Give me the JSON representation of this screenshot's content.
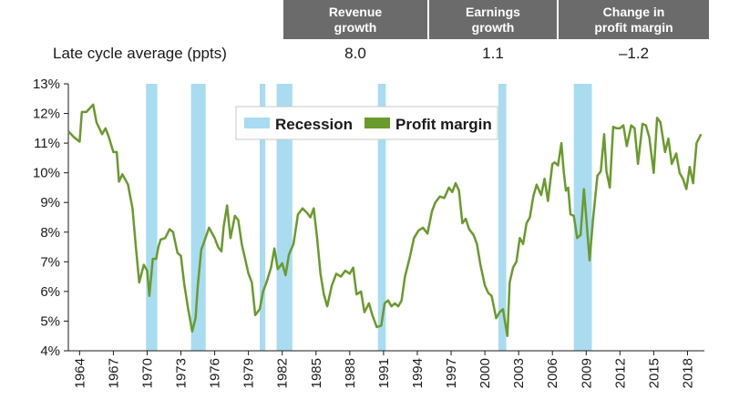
{
  "table": {
    "headers": [
      {
        "line1": "Revenue",
        "line2": "growth"
      },
      {
        "line1": "Earnings",
        "line2": "growth"
      },
      {
        "line1": "Change in",
        "line2": "profit margin"
      }
    ],
    "row_label": "Late cycle average (ppts)",
    "values": [
      "8.0",
      "1.1",
      "–1.2"
    ]
  },
  "colors": {
    "header_bg": "#6b6b6b",
    "recession": "#a9dcf0",
    "line": "#6a9a2c",
    "axis": "#1a1a1a"
  },
  "chart_data": {
    "type": "line",
    "x_range": [
      1963,
      2019.5
    ],
    "ylim": [
      4,
      13
    ],
    "y_ticks": [
      4,
      5,
      6,
      7,
      8,
      9,
      10,
      11,
      12,
      13
    ],
    "y_tick_labels": [
      "4%",
      "5%",
      "6%",
      "7%",
      "8%",
      "9%",
      "10%",
      "11%",
      "12%",
      "13%"
    ],
    "x_ticks": [
      1964,
      1967,
      1970,
      1973,
      1976,
      1979,
      1982,
      1985,
      1988,
      1991,
      1994,
      1997,
      2000,
      2003,
      2006,
      2009,
      2012,
      2015,
      2018
    ],
    "legend": {
      "recession": "Recession",
      "line": "Profit margin"
    },
    "recessions": [
      [
        1969.9,
        1970.9
      ],
      [
        1973.9,
        1975.2
      ],
      [
        1980.0,
        1980.5
      ],
      [
        1981.5,
        1982.9
      ],
      [
        1990.5,
        1991.2
      ],
      [
        2001.2,
        2001.9
      ],
      [
        2007.9,
        2009.5
      ]
    ],
    "series": [
      {
        "name": "Profit margin",
        "x": [
          1963.0,
          1963.5,
          1964.0,
          1964.2,
          1964.6,
          1965.2,
          1965.5,
          1966.0,
          1966.3,
          1966.6,
          1967.0,
          1967.3,
          1967.5,
          1967.8,
          1968.3,
          1968.7,
          1969.0,
          1969.3,
          1969.7,
          1970.0,
          1970.2,
          1970.5,
          1970.8,
          1971.0,
          1971.2,
          1971.6,
          1972.0,
          1972.3,
          1972.7,
          1973.0,
          1973.3,
          1973.6,
          1974.0,
          1974.3,
          1974.5,
          1974.8,
          1975.0,
          1975.5,
          1976.0,
          1976.3,
          1976.6,
          1976.8,
          1977.1,
          1977.4,
          1977.8,
          1978.1,
          1978.4,
          1978.7,
          1979.0,
          1979.3,
          1979.6,
          1980.0,
          1980.3,
          1980.6,
          1981.0,
          1981.3,
          1981.6,
          1982.0,
          1982.3,
          1982.6,
          1983.0,
          1983.4,
          1983.8,
          1984.2,
          1984.5,
          1984.8,
          1985.1,
          1985.4,
          1985.7,
          1986.0,
          1986.4,
          1986.8,
          1987.2,
          1987.6,
          1988.0,
          1988.3,
          1988.6,
          1989.0,
          1989.3,
          1989.7,
          1990.0,
          1990.4,
          1990.8,
          1991.1,
          1991.4,
          1991.7,
          1992.0,
          1992.3,
          1992.6,
          1992.9,
          1993.3,
          1993.7,
          1994.1,
          1994.5,
          1994.9,
          1995.3,
          1995.6,
          1996.0,
          1996.4,
          1996.8,
          1997.1,
          1997.4,
          1997.7,
          1998.0,
          1998.3,
          1998.6,
          1999.0,
          1999.3,
          1999.6,
          2000.0,
          2000.3,
          2000.6,
          2001.0,
          2001.3,
          2001.6,
          2002.0,
          2002.2,
          2002.5,
          2002.8,
          2003.1,
          2003.4,
          2003.7,
          2004.0,
          2004.3,
          2004.6,
          2005.0,
          2005.3,
          2005.6,
          2006.0,
          2006.2,
          2006.5,
          2006.8,
          2007.0,
          2007.2,
          2007.4,
          2007.6,
          2007.9,
          2008.2,
          2008.5,
          2008.8,
          2009.0,
          2009.3,
          2009.6,
          2010.0,
          2010.3,
          2010.6,
          2010.8,
          2011.1,
          2011.4,
          2011.7,
          2012.0,
          2012.3,
          2012.6,
          2013.0,
          2013.3,
          2013.6,
          2014.0,
          2014.3,
          2014.6,
          2015.0,
          2015.3,
          2015.6,
          2016.0,
          2016.3,
          2016.6,
          2017.0,
          2017.3,
          2017.6,
          2017.9,
          2018.2,
          2018.5,
          2018.8,
          2019.2
        ],
        "values": [
          11.4,
          11.2,
          11.05,
          12.05,
          12.05,
          12.3,
          11.7,
          11.3,
          11.5,
          11.2,
          10.7,
          10.7,
          9.7,
          9.95,
          9.6,
          8.8,
          7.5,
          6.3,
          6.9,
          6.7,
          5.85,
          7.1,
          7.1,
          7.5,
          7.75,
          7.8,
          8.1,
          8.0,
          7.3,
          7.2,
          6.25,
          5.5,
          4.65,
          5.1,
          6.2,
          7.4,
          7.6,
          8.15,
          7.8,
          7.5,
          7.35,
          8.2,
          8.9,
          7.8,
          8.55,
          8.4,
          7.6,
          7.1,
          6.6,
          6.3,
          5.2,
          5.4,
          6.0,
          6.3,
          6.8,
          7.45,
          6.75,
          6.95,
          6.55,
          7.25,
          7.6,
          8.6,
          8.8,
          8.65,
          8.5,
          8.8,
          7.8,
          6.6,
          5.9,
          5.5,
          6.2,
          6.6,
          6.5,
          6.7,
          6.6,
          6.8,
          5.9,
          6.0,
          5.3,
          5.6,
          5.2,
          4.8,
          4.85,
          5.6,
          5.7,
          5.5,
          5.6,
          5.5,
          5.7,
          6.5,
          7.1,
          7.8,
          8.05,
          8.15,
          7.95,
          8.7,
          9.0,
          9.2,
          9.15,
          9.5,
          9.35,
          9.65,
          9.4,
          8.3,
          8.45,
          8.1,
          7.9,
          7.6,
          6.9,
          6.2,
          5.95,
          5.85,
          5.1,
          5.3,
          5.4,
          4.5,
          6.3,
          6.8,
          7.0,
          7.8,
          7.6,
          8.3,
          8.5,
          9.2,
          9.6,
          9.25,
          9.8,
          9.05,
          10.3,
          10.35,
          10.25,
          11.0,
          10.05,
          9.4,
          9.5,
          8.6,
          8.55,
          7.8,
          7.9,
          9.45,
          8.5,
          7.05,
          8.4,
          9.9,
          10.05,
          11.3,
          10.05,
          9.5,
          11.55,
          11.5,
          11.5,
          11.6,
          10.9,
          11.6,
          11.5,
          10.3,
          11.65,
          11.6,
          11.2,
          10.0,
          11.85,
          11.7,
          10.7,
          11.15,
          10.3,
          10.65,
          10.0,
          9.8,
          9.45,
          10.2,
          9.65,
          11.0,
          11.3
        ]
      }
    ]
  }
}
